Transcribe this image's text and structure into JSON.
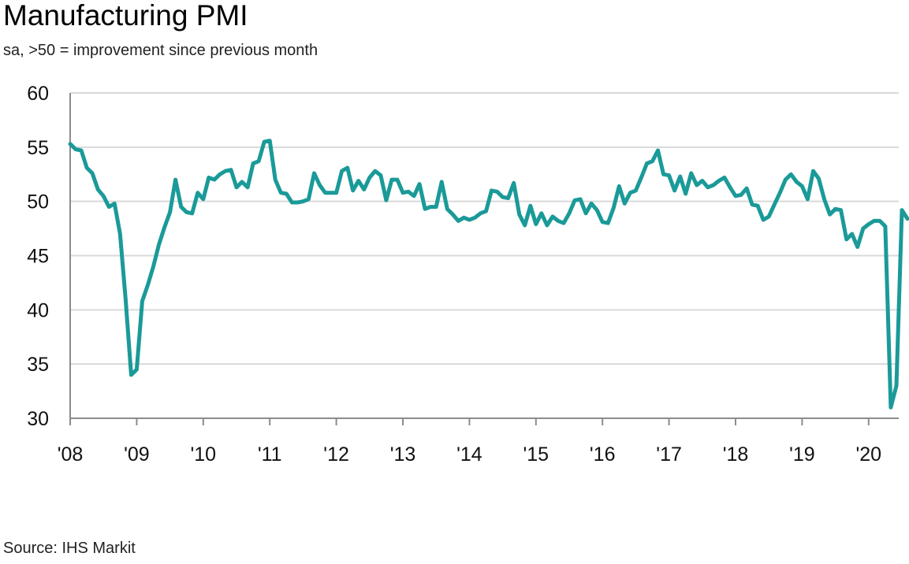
{
  "title": "Manufacturing PMI",
  "subtitle": "sa, >50 = improvement since previous month",
  "source": "Source: IHS Markit",
  "colors": {
    "line": "#1a9a98",
    "grid": "#d9d9d9",
    "axis": "#8c8c8c"
  },
  "chart_data": {
    "type": "line",
    "title": "Manufacturing PMI",
    "subtitle": "sa, >50 = improvement since previous month",
    "xlabel": "",
    "ylabel": "",
    "ylim": [
      30,
      60
    ],
    "yticks": [
      30,
      35,
      40,
      45,
      50,
      55,
      60
    ],
    "xticks": [
      {
        "year": 2008,
        "label": "'08"
      },
      {
        "year": 2009,
        "label": "'09"
      },
      {
        "year": 2010,
        "label": "'10"
      },
      {
        "year": 2011,
        "label": "'11"
      },
      {
        "year": 2012,
        "label": "'12"
      },
      {
        "year": 2013,
        "label": "'13"
      },
      {
        "year": 2014,
        "label": "'14"
      },
      {
        "year": 2015,
        "label": "'15"
      },
      {
        "year": 2016,
        "label": "'16"
      },
      {
        "year": 2017,
        "label": "'17"
      },
      {
        "year": 2018,
        "label": "'18"
      },
      {
        "year": 2019,
        "label": "'19"
      },
      {
        "year": 2020,
        "label": "'20"
      }
    ],
    "grid": true,
    "legend": "none",
    "x_start": "2008-01",
    "x_end": "2020-07",
    "series": [
      {
        "values": [
          55.3,
          54.8,
          54.7,
          53.1,
          52.6,
          51.1,
          50.5,
          49.5,
          49.8,
          47.0,
          41.0,
          34.0,
          34.5,
          40.8,
          42.3,
          44.0,
          46.0,
          47.6,
          49.0,
          52.0,
          49.5,
          49.0,
          48.9,
          50.8,
          50.2,
          52.2,
          52.0,
          52.5,
          52.8,
          52.9,
          51.3,
          51.8,
          51.3,
          53.5,
          53.7,
          55.5,
          55.6,
          52.0,
          50.8,
          50.7,
          49.9,
          49.9,
          50.0,
          50.2,
          52.6,
          51.5,
          50.8,
          50.8,
          50.8,
          52.8,
          53.1,
          51.0,
          51.9,
          51.1,
          52.2,
          52.8,
          52.4,
          50.1,
          52.0,
          52.0,
          50.8,
          50.9,
          50.5,
          51.6,
          49.3,
          49.5,
          49.5,
          51.8,
          49.3,
          48.8,
          48.2,
          48.5,
          48.3,
          48.5,
          48.9,
          49.1,
          51.0,
          50.9,
          50.4,
          50.3,
          51.7,
          48.8,
          47.8,
          49.6,
          47.9,
          48.9,
          47.8,
          48.6,
          48.2,
          48.0,
          48.9,
          50.1,
          50.2,
          48.9,
          49.8,
          49.2,
          48.1,
          48.0,
          49.4,
          51.4,
          49.8,
          50.8,
          51.0,
          52.2,
          53.5,
          53.7,
          54.7,
          52.5,
          52.4,
          51.0,
          52.3,
          50.7,
          52.6,
          51.5,
          51.9,
          51.3,
          51.5,
          51.9,
          52.2,
          51.3,
          50.5,
          50.6,
          51.2,
          49.7,
          49.6,
          48.3,
          48.6,
          49.7,
          50.8,
          52.0,
          52.5,
          51.8,
          51.4,
          50.2,
          52.8,
          52.1,
          50.2,
          48.8,
          49.3,
          49.2,
          46.5,
          47.0,
          45.8,
          47.5,
          47.9,
          48.2,
          48.2,
          47.7,
          31.0,
          33.0,
          49.2,
          48.4
        ]
      }
    ]
  }
}
